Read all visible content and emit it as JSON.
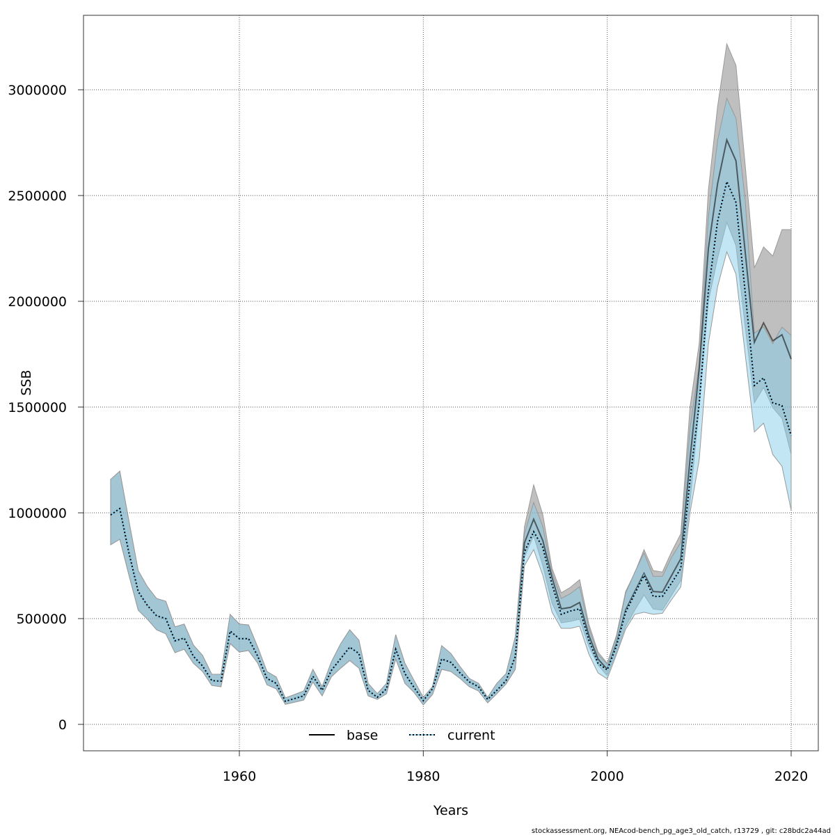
{
  "chart_data": {
    "type": "line",
    "xlabel": "Years",
    "ylabel": "SSB",
    "xlim": [
      1942,
      2023
    ],
    "ylim": [
      -125000,
      3350000
    ],
    "x_ticks": [
      1960,
      1980,
      2000,
      2020
    ],
    "y_ticks": [
      0,
      500000,
      1000000,
      1500000,
      2000000,
      2500000,
      3000000
    ],
    "grid": true,
    "legend_position": "bottom-center",
    "x_start": 1946,
    "x_end": 2020,
    "series": [
      {
        "name": "base",
        "line_style": "solid",
        "color": "#000000",
        "band_color": "#808080",
        "values": [
          990000,
          1020000,
          809000,
          628000,
          562000,
          513000,
          500000,
          395000,
          408000,
          322000,
          276000,
          207000,
          204000,
          441000,
          405000,
          405000,
          322000,
          217000,
          194000,
          109000,
          122000,
          135000,
          227000,
          161000,
          255000,
          310000,
          365000,
          335000,
          161000,
          128000,
          168000,
          355000,
          240000,
          174000,
          112000,
          168000,
          309000,
          293000,
          243000,
          201000,
          178000,
          118000,
          161000,
          207000,
          320000,
          858000,
          970000,
          868000,
          694000,
          546000,
          553000,
          576000,
          421000,
          309000,
          260000,
          380000,
          540000,
          628000,
          714000,
          628000,
          625000,
          704000,
          783000,
          1253000,
          1680000,
          2250000,
          2556000,
          2763000,
          2664000,
          2234000,
          1806000,
          1898000,
          1813000,
          1842000,
          1727000
        ],
        "upper": [
          1158000,
          1197000,
          960000,
          727000,
          651000,
          595000,
          582000,
          461000,
          474000,
          375000,
          326000,
          237000,
          237000,
          520000,
          474000,
          470000,
          365000,
          250000,
          224000,
          125000,
          141000,
          158000,
          260000,
          178000,
          295000,
          380000,
          447000,
          398000,
          194000,
          145000,
          194000,
          424000,
          289000,
          207000,
          128000,
          178000,
          372000,
          335000,
          273000,
          217000,
          194000,
          128000,
          194000,
          240000,
          414000,
          934000,
          1132000,
          990000,
          737000,
          622000,
          648000,
          684000,
          474000,
          342000,
          289000,
          420000,
          628000,
          717000,
          826000,
          727000,
          720000,
          816000,
          901000,
          1500000,
          1800000,
          2526000,
          2921000,
          3217000,
          3115000,
          2645000,
          2158000,
          2257000,
          2214000,
          2339000,
          2339000
        ],
        "lower": [
          849000,
          875000,
          704000,
          540000,
          497000,
          447000,
          428000,
          339000,
          355000,
          289000,
          250000,
          184000,
          178000,
          382000,
          342000,
          349000,
          289000,
          187000,
          168000,
          95000,
          105000,
          115000,
          200000,
          135000,
          225000,
          265000,
          302000,
          266000,
          135000,
          118000,
          145000,
          309000,
          194000,
          151000,
          92000,
          141000,
          260000,
          250000,
          217000,
          178000,
          158000,
          102000,
          145000,
          191000,
          260000,
          790000,
          891000,
          750000,
          572000,
          480000,
          487000,
          497000,
          370000,
          280000,
          230000,
          340000,
          464000,
          540000,
          612000,
          545000,
          540000,
          610000,
          680000,
          1050000,
          1500000,
          2000000,
          2204000,
          2373000,
          2263000,
          1880000,
          1520000,
          1592000,
          1497000,
          1447000,
          1276000
        ]
      },
      {
        "name": "current",
        "line_style": "dotted",
        "color": "#000000",
        "band_color": "#87ceeb",
        "values": [
          990000,
          1020000,
          809000,
          628000,
          562000,
          513000,
          500000,
          395000,
          408000,
          322000,
          276000,
          207000,
          204000,
          441000,
          405000,
          405000,
          322000,
          217000,
          194000,
          109000,
          122000,
          135000,
          227000,
          161000,
          255000,
          310000,
          365000,
          335000,
          161000,
          128000,
          168000,
          355000,
          240000,
          174000,
          112000,
          168000,
          309000,
          293000,
          243000,
          201000,
          178000,
          118000,
          161000,
          207000,
          320000,
          815000,
          911000,
          836000,
          661000,
          520000,
          536000,
          546000,
          398000,
          289000,
          257000,
          370000,
          530000,
          618000,
          704000,
          605000,
          605000,
          668000,
          737000,
          1155000,
          1516000,
          2050000,
          2378000,
          2566000,
          2467000,
          2043000,
          1602000,
          1638000,
          1520000,
          1507000,
          1365000
        ],
        "upper": [
          1158000,
          1197000,
          960000,
          727000,
          651000,
          595000,
          582000,
          461000,
          474000,
          375000,
          326000,
          237000,
          237000,
          520000,
          474000,
          470000,
          365000,
          250000,
          224000,
          125000,
          141000,
          158000,
          260000,
          178000,
          295000,
          380000,
          447000,
          398000,
          194000,
          145000,
          194000,
          424000,
          289000,
          207000,
          128000,
          178000,
          372000,
          335000,
          273000,
          217000,
          194000,
          128000,
          194000,
          240000,
          414000,
          900000,
          1049000,
          934000,
          717000,
          595000,
          618000,
          651000,
          455000,
          330000,
          285000,
          410000,
          620000,
          720000,
          810000,
          700000,
          700000,
          790000,
          860000,
          1400000,
          1700000,
          2400000,
          2760000,
          2960000,
          2865000,
          2480000,
          1849000,
          1880000,
          1800000,
          1878000,
          1839000
        ],
        "lower": [
          849000,
          875000,
          704000,
          540000,
          497000,
          447000,
          428000,
          339000,
          355000,
          289000,
          250000,
          184000,
          178000,
          382000,
          342000,
          349000,
          289000,
          187000,
          168000,
          95000,
          105000,
          115000,
          200000,
          135000,
          225000,
          265000,
          302000,
          266000,
          135000,
          118000,
          145000,
          309000,
          194000,
          151000,
          92000,
          141000,
          260000,
          250000,
          217000,
          178000,
          158000,
          102000,
          145000,
          191000,
          260000,
          750000,
          826000,
          704000,
          530000,
          454000,
          454000,
          464000,
          332000,
          243000,
          215000,
          330000,
          450000,
          520000,
          530000,
          520000,
          525000,
          590000,
          650000,
          1000000,
          1250000,
          1800000,
          2069000,
          2234000,
          2128000,
          1750000,
          1382000,
          1424000,
          1276000,
          1220000,
          1013000
        ]
      }
    ]
  },
  "footer": "stockassessment.org, NEAcod-bench_pg_age3_old_catch, r13729 , git: c28bdc2a44ad"
}
